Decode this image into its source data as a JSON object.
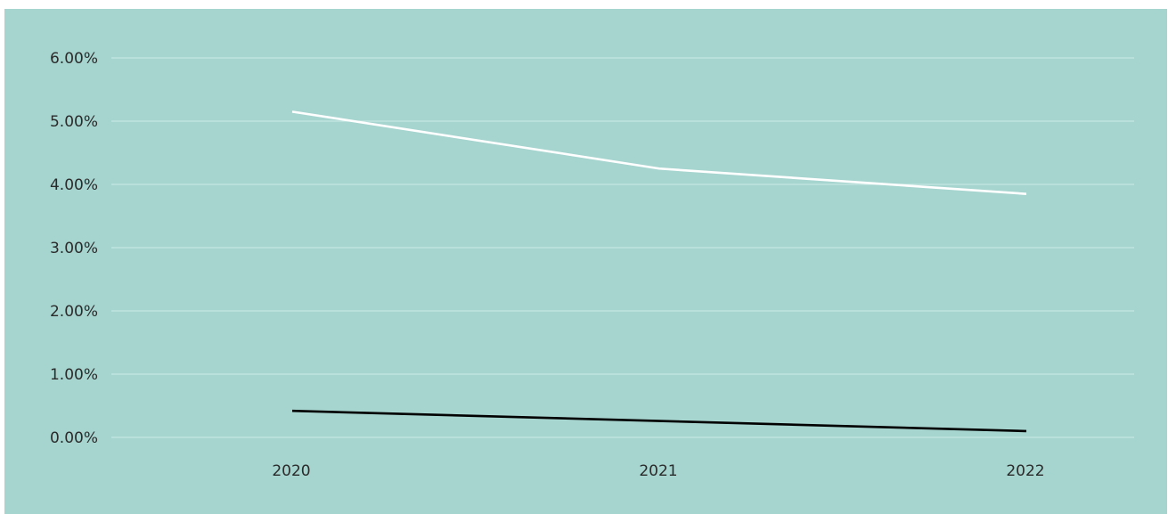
{
  "chart_data": {
    "type": "line",
    "categories": [
      "2020",
      "2021",
      "2022"
    ],
    "series": [
      {
        "color": "#ffffff",
        "values": [
          5.15,
          4.25,
          3.85
        ]
      },
      {
        "color": "#000000",
        "values": [
          0.42,
          0.26,
          0.1
        ]
      }
    ],
    "ylim": [
      0,
      6
    ],
    "y_ticks": [
      0,
      1,
      2,
      3,
      4,
      5,
      6
    ],
    "y_tick_labels": [
      "0.00%",
      "1.00%",
      "2.00%",
      "3.00%",
      "4.00%",
      "5.00%",
      "6.00%"
    ],
    "grid": true,
    "grid_color": "#c7e6e2",
    "background_color": "#a6d4cf",
    "legend": "none"
  }
}
